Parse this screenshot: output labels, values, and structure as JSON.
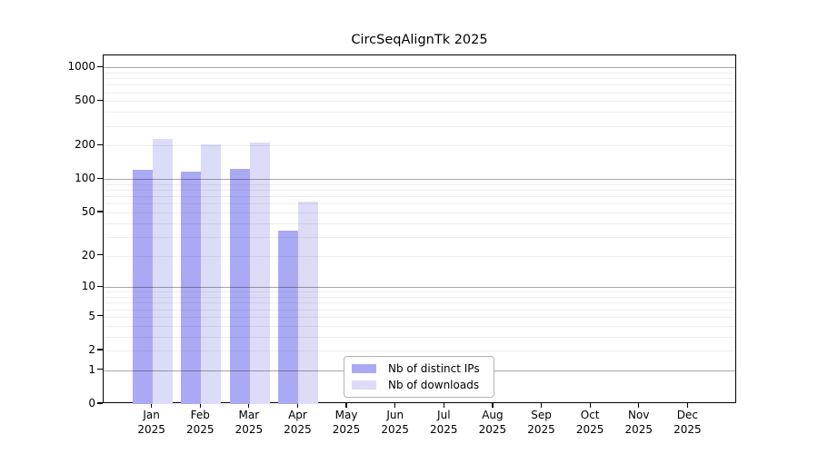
{
  "chart_data": {
    "type": "bar",
    "title": "CircSeqAlignTk 2025",
    "categories": [
      "Jan",
      "Feb",
      "Mar",
      "Apr",
      "May",
      "Jun",
      "Jul",
      "Aug",
      "Sep",
      "Oct",
      "Nov",
      "Dec"
    ],
    "x_tick_second_line": "2025",
    "series": [
      {
        "name": "Nb of distinct IPs",
        "color": "#aaaaf4",
        "values": [
          121,
          117,
          123,
          34,
          0,
          0,
          0,
          0,
          0,
          0,
          0,
          0
        ]
      },
      {
        "name": "Nb of downloads",
        "color": "#dcdcf8",
        "values": [
          228,
          204,
          214,
          63,
          0,
          0,
          0,
          0,
          0,
          0,
          0,
          0
        ]
      }
    ],
    "y_scale": "log1p",
    "ylim": [
      0,
      1280
    ],
    "y_ticks": [
      0,
      1,
      2,
      5,
      10,
      20,
      50,
      100,
      200,
      500,
      1000
    ],
    "y_major_gridlines": [
      1,
      10,
      100,
      1000
    ],
    "grid": true,
    "legend_position": "lower center",
    "background_color": "#ffffff"
  }
}
